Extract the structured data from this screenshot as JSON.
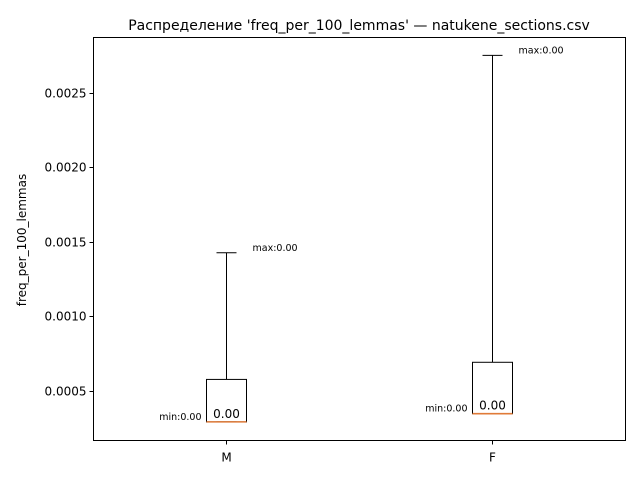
{
  "chart_data": {
    "type": "boxplot",
    "title": "Распределение 'freq_per_100_lemmas' — natukene_sections.csv",
    "xlabel": "",
    "ylabel": "freq_per_100_lemmas",
    "ylim": [
      0.000165,
      0.00287
    ],
    "yticks": [
      0.0005,
      0.001,
      0.0015,
      0.002,
      0.0025
    ],
    "ytick_labels": [
      "0.0005",
      "0.0010",
      "0.0015",
      "0.0020",
      "0.0025"
    ],
    "categories": [
      "M",
      "F"
    ],
    "boxes": [
      {
        "category": "M",
        "whisker_low": 0.00029,
        "q1": 0.00029,
        "median": 0.00029,
        "q3": 0.000575,
        "whisker_high": 0.001425,
        "min_label": "min:0.00",
        "max_label": "max:0.00",
        "median_label": "0.00"
      },
      {
        "category": "F",
        "whisker_low": 0.000345,
        "q1": 0.000345,
        "median": 0.000345,
        "q3": 0.00069,
        "whisker_high": 0.00275,
        "min_label": "min:0.00",
        "max_label": "max:0.00",
        "median_label": "0.00"
      }
    ],
    "grid": false,
    "legend": "none"
  },
  "colors": {
    "box": "#000000",
    "median": "#e07b39",
    "axes": "#000000",
    "background": "#ffffff"
  }
}
